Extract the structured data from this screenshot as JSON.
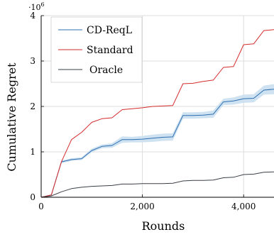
{
  "chart_data": {
    "type": "line",
    "xlabel": "Rounds",
    "ylabel": "Cumulative Regret",
    "y_multiplier_label": "·10",
    "y_multiplier_exponent": "6",
    "xlim": [
      0,
      4600
    ],
    "ylim": [
      0,
      4
    ],
    "x_ticks": [
      0,
      2000,
      4000
    ],
    "x_tick_labels": [
      "0",
      "2,000",
      "4,000"
    ],
    "y_ticks": [
      0,
      1,
      2,
      3,
      4
    ],
    "y_tick_labels": [
      "0",
      "1",
      "2",
      "3",
      "4"
    ],
    "grid": true,
    "legend_position": "top-left",
    "series": [
      {
        "name": "CD-ReqL",
        "color": "#2e6fb0",
        "band_color": "#c9dff0",
        "x": [
          0,
          200,
          400,
          600,
          800,
          1000,
          1200,
          1400,
          1600,
          1800,
          2000,
          2200,
          2400,
          2600,
          2800,
          3000,
          3200,
          3400,
          3600,
          3800,
          4000,
          4200,
          4400,
          4600
        ],
        "y": [
          0,
          0.05,
          0.78,
          0.83,
          0.85,
          1.03,
          1.12,
          1.14,
          1.27,
          1.27,
          1.28,
          1.3,
          1.32,
          1.33,
          1.8,
          1.8,
          1.81,
          1.83,
          2.1,
          2.12,
          2.17,
          2.18,
          2.36,
          2.38
        ],
        "lower": [
          0,
          0.04,
          0.75,
          0.8,
          0.82,
          0.99,
          1.08,
          1.09,
          1.2,
          1.21,
          1.21,
          1.22,
          1.24,
          1.25,
          1.73,
          1.73,
          1.74,
          1.75,
          2.03,
          2.04,
          2.08,
          2.09,
          2.26,
          2.27
        ],
        "upper": [
          0,
          0.06,
          0.81,
          0.86,
          0.88,
          1.07,
          1.16,
          1.19,
          1.34,
          1.33,
          1.35,
          1.38,
          1.4,
          1.41,
          1.87,
          1.87,
          1.88,
          1.91,
          2.17,
          2.2,
          2.26,
          2.27,
          2.46,
          2.49
        ]
      },
      {
        "name": "Standard",
        "color": "#d62b2b",
        "x": [
          0,
          200,
          400,
          600,
          800,
          1000,
          1200,
          1400,
          1600,
          1800,
          2000,
          2200,
          2400,
          2600,
          2800,
          3000,
          3200,
          3400,
          3600,
          3800,
          4000,
          4200,
          4400,
          4600
        ],
        "y": [
          0,
          0.05,
          0.78,
          1.27,
          1.43,
          1.65,
          1.73,
          1.75,
          1.93,
          1.95,
          1.97,
          2.0,
          2.01,
          2.02,
          2.5,
          2.51,
          2.55,
          2.58,
          2.86,
          2.88,
          3.36,
          3.38,
          3.67,
          3.69
        ]
      },
      {
        "name": "Oracle",
        "color": "#3a3f46",
        "x": [
          0,
          200,
          400,
          600,
          800,
          1000,
          1200,
          1400,
          1600,
          1800,
          2000,
          2200,
          2400,
          2600,
          2800,
          3000,
          3200,
          3400,
          3600,
          3800,
          4000,
          4200,
          4400,
          4600
        ],
        "y": [
          0,
          0.03,
          0.12,
          0.19,
          0.22,
          0.24,
          0.25,
          0.26,
          0.29,
          0.29,
          0.3,
          0.3,
          0.3,
          0.31,
          0.36,
          0.37,
          0.37,
          0.38,
          0.43,
          0.44,
          0.5,
          0.51,
          0.55,
          0.56
        ]
      }
    ]
  }
}
